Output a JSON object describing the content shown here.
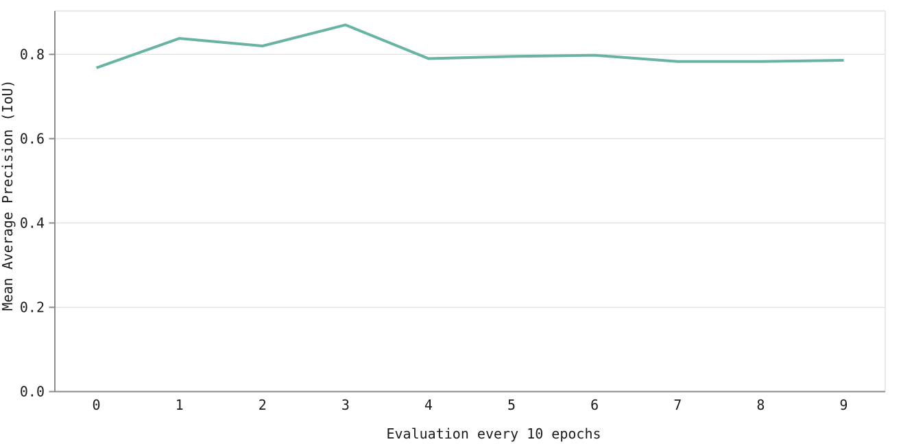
{
  "chart_data": {
    "type": "line",
    "x": [
      0,
      1,
      2,
      3,
      4,
      5,
      6,
      7,
      8,
      9
    ],
    "xtick_labels": [
      "0",
      "1",
      "2",
      "3",
      "4",
      "5",
      "6",
      "7",
      "8",
      "9"
    ],
    "values": [
      0.768,
      0.838,
      0.82,
      0.87,
      0.79,
      0.795,
      0.798,
      0.783,
      0.783,
      0.786
    ],
    "title": "",
    "xlabel": "Evaluation every 10 epochs",
    "ylabel": "Mean Average Precision (IoU)",
    "ylim": [
      0,
      0.903
    ],
    "yticks": [
      0.0,
      0.2,
      0.4,
      0.6,
      0.8
    ],
    "ytick_labels": [
      "0.0",
      "0.2",
      "0.4",
      "0.6",
      "0.8"
    ],
    "grid": true,
    "legend": false,
    "colors": {
      "line": "#69b3a2",
      "axis": "#8a8a8a",
      "grid": "#e2e2e2",
      "frame": "#e9e9e9",
      "text": "#1b1b1b"
    }
  }
}
